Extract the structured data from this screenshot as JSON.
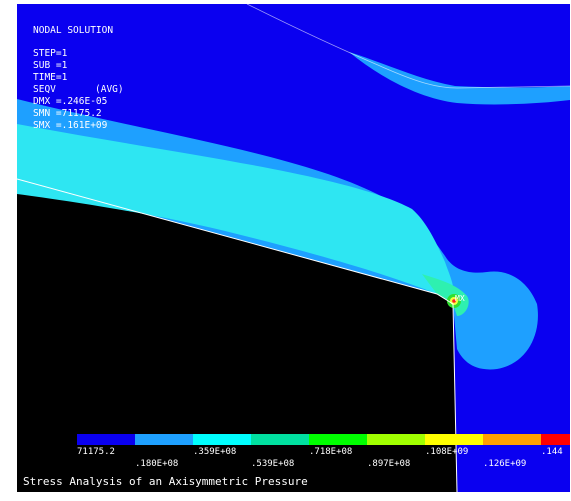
{
  "window": {
    "background": "#000000"
  },
  "solution_info": {
    "heading": "NODAL SOLUTION",
    "step": "STEP=1",
    "sub": "SUB =1",
    "time": "TIME=1",
    "seqv_label": "SEQV",
    "seqv_avg": "(AVG)",
    "dmx": "DMX =.246E-05",
    "smn": "SMN =71175.2",
    "smx": "SMX =.161E+09"
  },
  "plot": {
    "mx_label": "MX",
    "colors": {
      "deep_blue": "#0a00f0",
      "light_blue": "#1ea0ff",
      "cyan": "#2ee6f2",
      "teal": "#2ef0b0",
      "green": "#30e030",
      "yellow": "#f2ff40",
      "red": "#ff2020",
      "outline": "#ffffff"
    }
  },
  "legend": {
    "colors": [
      "#0a00f0",
      "#1ea0ff",
      "#00ffff",
      "#00e0a0",
      "#00ff00",
      "#a0ff00",
      "#ffff00",
      "#ffa000",
      "#ff0000"
    ],
    "labels_top": [
      "71175.2",
      ".359E+08",
      ".718E+08",
      ".108E+09",
      ".144"
    ],
    "labels_bottom": [
      ".180E+08",
      ".539E+08",
      ".897E+08",
      ".126E+09"
    ]
  },
  "caption": "Stress Analysis of an Axisymmetric Pressure"
}
